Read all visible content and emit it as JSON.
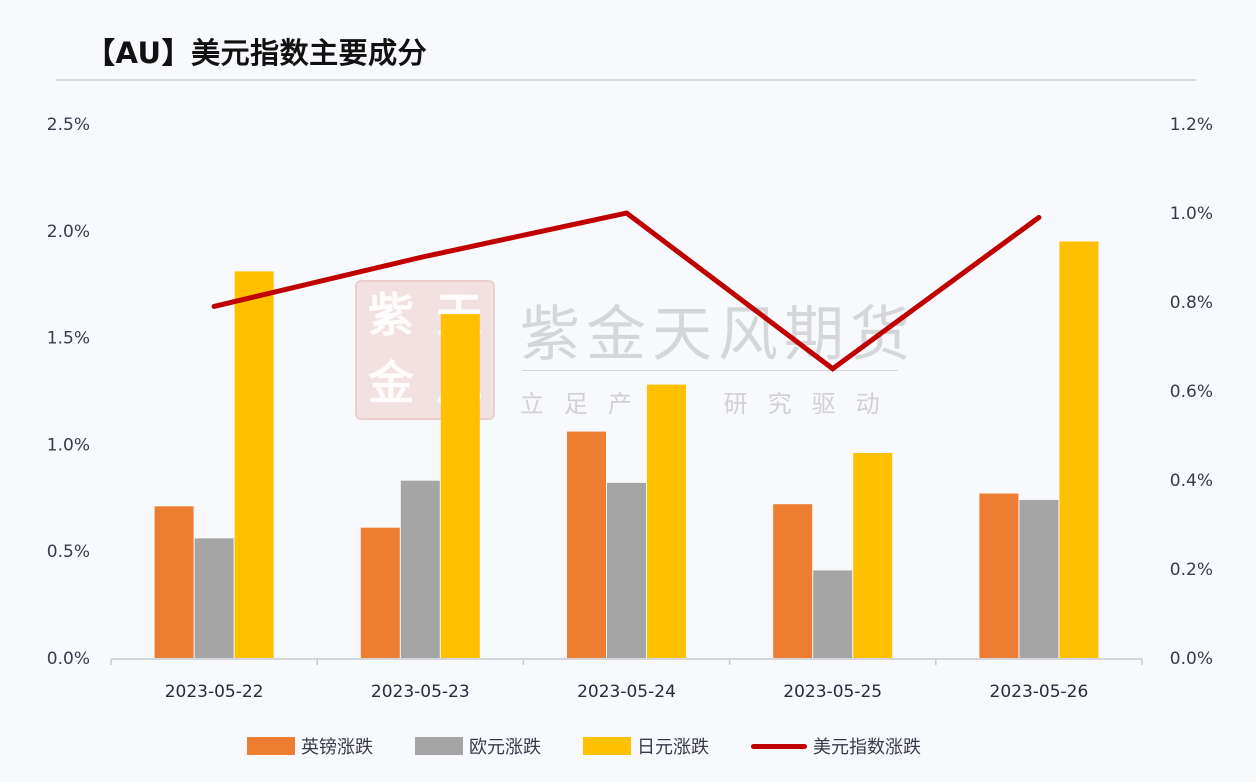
{
  "title": "【AU】美元指数主要成分",
  "watermark": {
    "seal_chars": [
      "紫",
      "天",
      "金",
      "风"
    ],
    "name": "紫金天风期货",
    "slogan": "立足产业 研究驱动"
  },
  "colors": {
    "gbp": "#ed7d31",
    "eur": "#a5a5a5",
    "jpy": "#ffc000",
    "usd_index": "#c00000",
    "background": "#f8f9fc",
    "axis": "#c8c8d0"
  },
  "legend": [
    {
      "label": "英镑涨跌",
      "type": "bar",
      "color": "#ed7d31"
    },
    {
      "label": "欧元涨跌",
      "type": "bar",
      "color": "#a5a5a5"
    },
    {
      "label": "日元涨跌",
      "type": "bar",
      "color": "#ffc000"
    },
    {
      "label": "美元指数涨跌",
      "type": "line",
      "color": "#c00000"
    }
  ],
  "chart_data": {
    "type": "bar",
    "title": "【AU】美元指数主要成分",
    "xlabel": "",
    "ylabel": "",
    "categories": [
      "2023-05-22",
      "2023-05-23",
      "2023-05-24",
      "2023-05-25",
      "2023-05-26"
    ],
    "series": [
      {
        "name": "英镑涨跌",
        "type": "bar",
        "axis": "left",
        "values": [
          0.71,
          0.61,
          1.06,
          0.72,
          0.77
        ]
      },
      {
        "name": "欧元涨跌",
        "type": "bar",
        "axis": "left",
        "values": [
          0.56,
          0.83,
          0.82,
          0.41,
          0.74
        ]
      },
      {
        "name": "日元涨跌",
        "type": "bar",
        "axis": "left",
        "values": [
          1.81,
          1.61,
          1.28,
          0.96,
          1.95
        ]
      },
      {
        "name": "美元指数涨跌",
        "type": "line",
        "axis": "right",
        "values": [
          0.79,
          0.9,
          1.0,
          0.65,
          0.99
        ]
      }
    ],
    "y_left": {
      "ylim": [
        0,
        2.5
      ],
      "ticks": [
        "0.0%",
        "0.5%",
        "1.0%",
        "1.5%",
        "2.0%",
        "2.5%"
      ]
    },
    "y_right": {
      "ylim": [
        0,
        1.2
      ],
      "ticks": [
        "0.0%",
        "0.2%",
        "0.4%",
        "0.6%",
        "0.8%",
        "1.0%",
        "1.2%"
      ]
    },
    "grid": false,
    "legend_position": "bottom",
    "unit": "%"
  }
}
